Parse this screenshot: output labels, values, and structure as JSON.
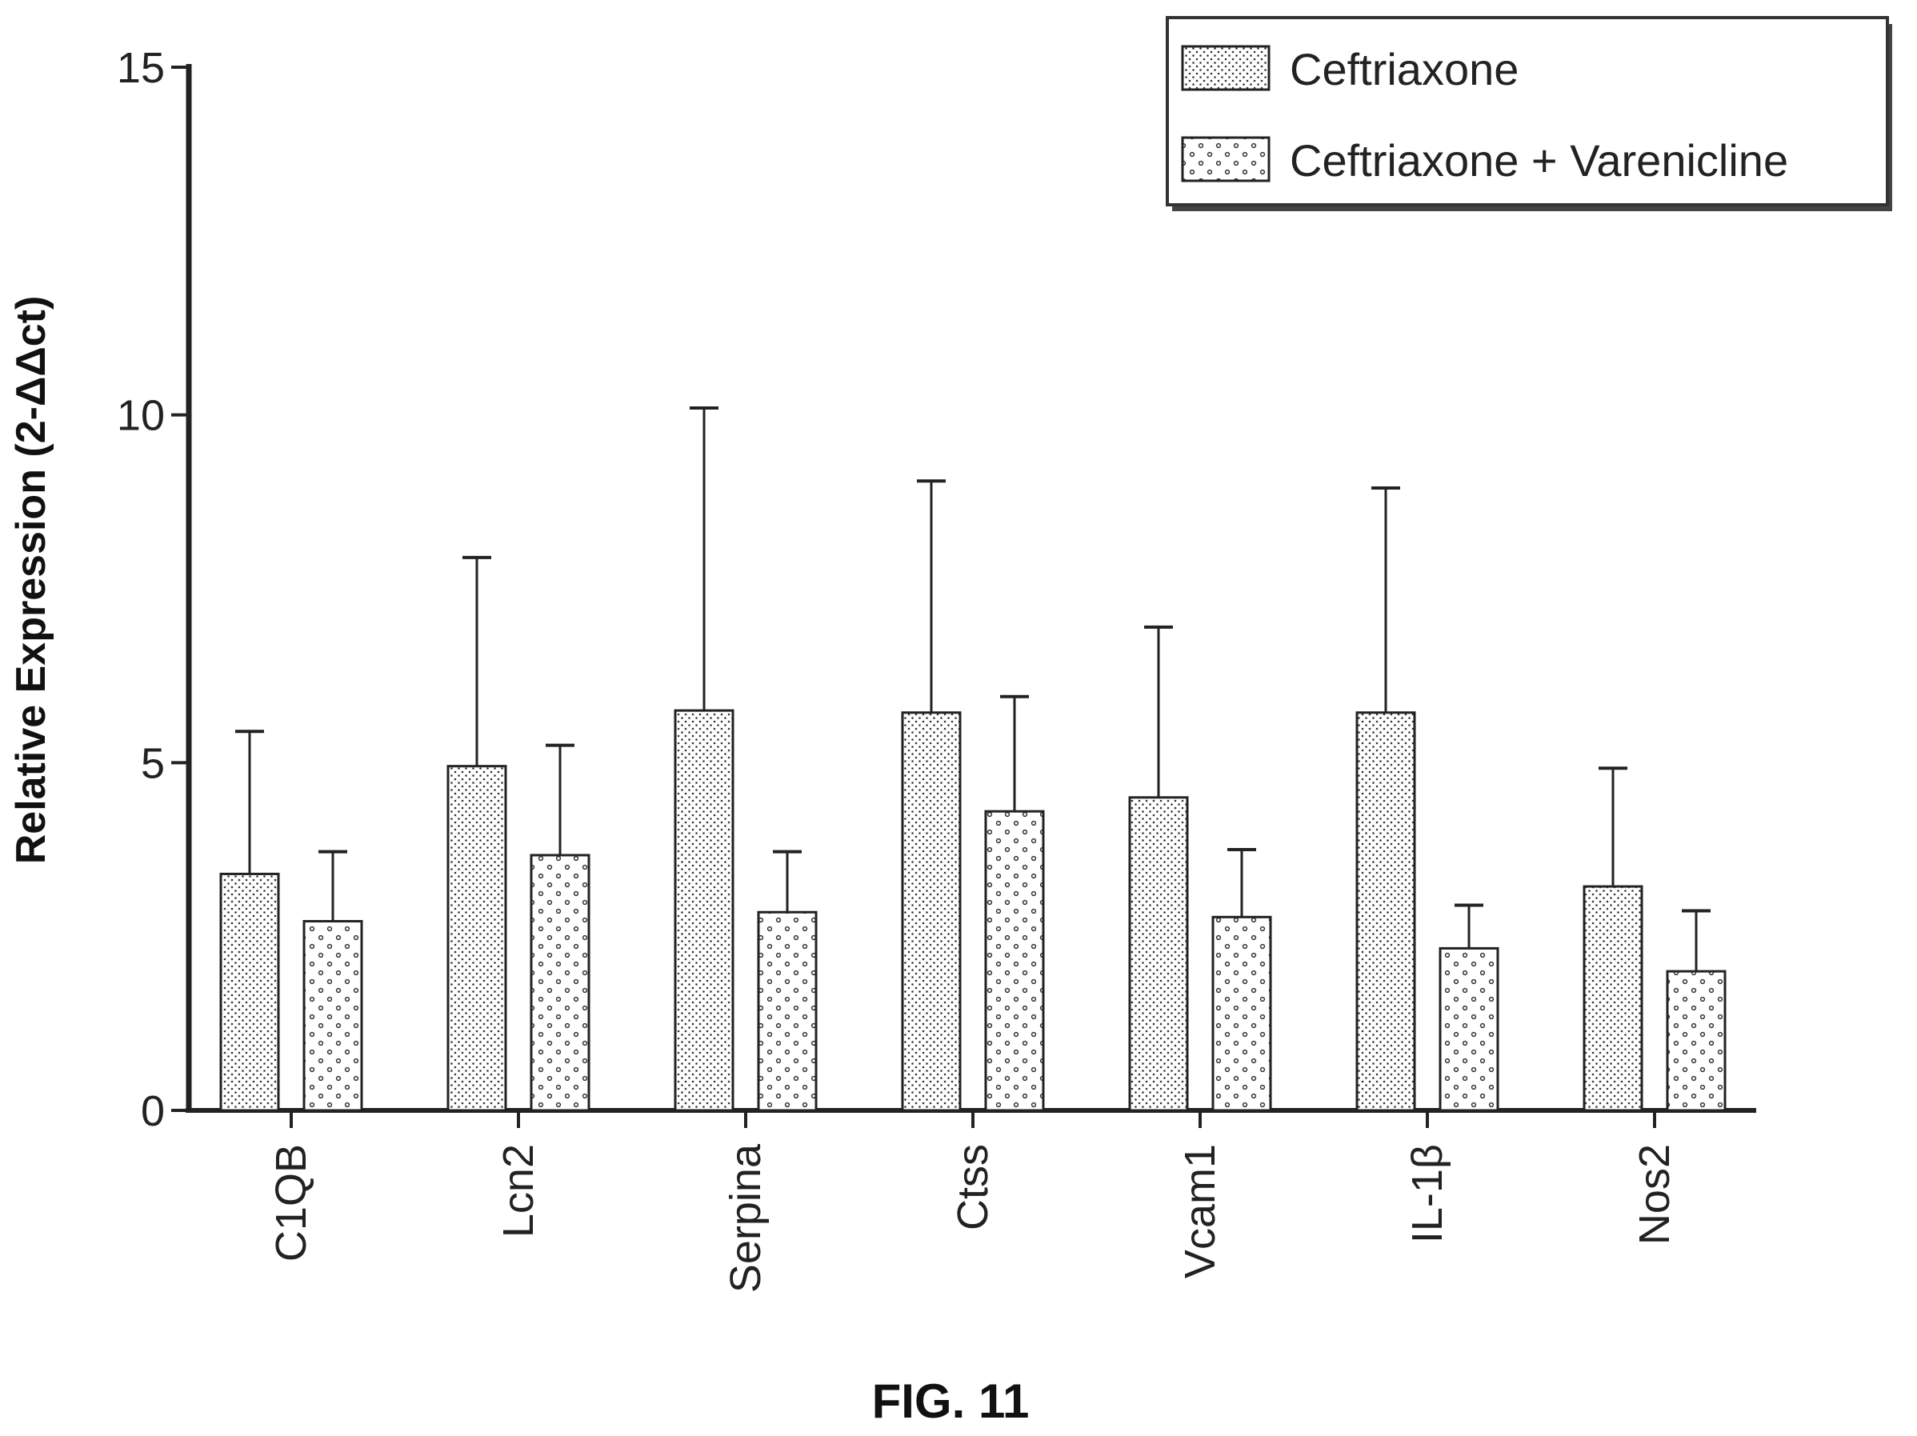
{
  "figure_label": "FIG. 11",
  "chart_data": {
    "type": "bar",
    "ylabel": "Relative Expression (2-ΔΔct)",
    "xlabel": "",
    "ylim": [
      0,
      15
    ],
    "yticks": [
      0,
      5,
      10,
      15
    ],
    "grid": false,
    "legend_position": "top-right",
    "categories": [
      "C1QB",
      "Lcn2",
      "Serpina",
      "Ctss",
      "Vcam1",
      "IL-1β",
      "Nos2"
    ],
    "series": [
      {
        "name": "Ceftriaxone",
        "pattern": "dense-stipple",
        "values": [
          3.4,
          4.95,
          5.75,
          5.72,
          4.5,
          5.72,
          3.22
        ],
        "error_upper": [
          5.45,
          7.95,
          10.1,
          9.05,
          6.95,
          8.95,
          4.92
        ]
      },
      {
        "name": "Ceftriaxone + Varenicline",
        "pattern": "sparse-circles",
        "values": [
          2.72,
          3.67,
          2.85,
          4.3,
          2.78,
          2.33,
          2.0
        ],
        "error_upper": [
          3.72,
          5.25,
          3.72,
          5.95,
          3.75,
          2.95,
          2.87
        ]
      }
    ]
  },
  "colors": {
    "axis": "#222222",
    "bar_fill": "#ffffff",
    "bar_stroke": "#222222",
    "stipple": "#333333"
  }
}
